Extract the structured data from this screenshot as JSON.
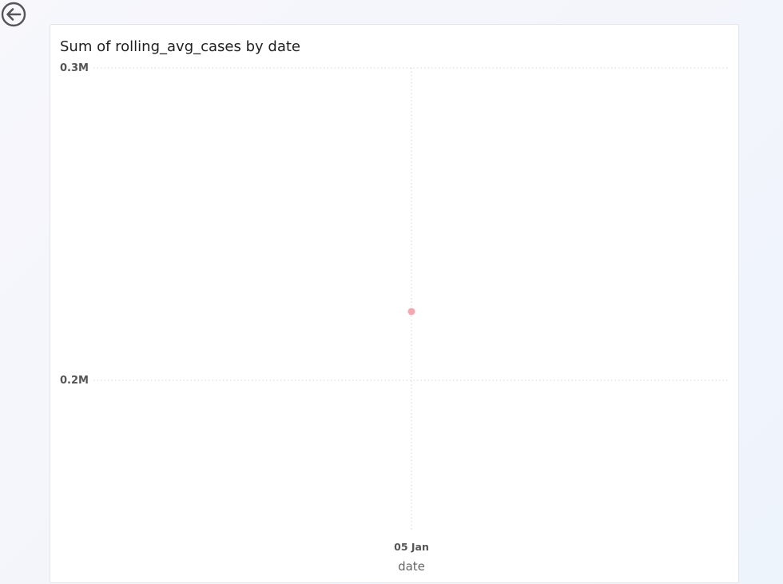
{
  "navigation": {
    "back_icon": "back-arrow-icon"
  },
  "chart_data": {
    "type": "scatter",
    "title": "Sum of rolling_avg_cases by date",
    "xlabel": "date",
    "ylabel": "",
    "x_tick_labels": [
      "05 Jan"
    ],
    "y_tick_labels": [
      "0.2M",
      "0.3M"
    ],
    "y_ticks": [
      200000,
      300000
    ],
    "ylim": [
      150000,
      300000
    ],
    "grid": true,
    "legend": "none",
    "series": [
      {
        "points": [
          {
            "x": "05 Jan",
            "y": 222000
          }
        ]
      }
    ],
    "colors": {
      "point": "#f4a7b1",
      "grid": "#d6d6d6",
      "tick_text": "#555555",
      "axis_title": "#666666"
    }
  }
}
